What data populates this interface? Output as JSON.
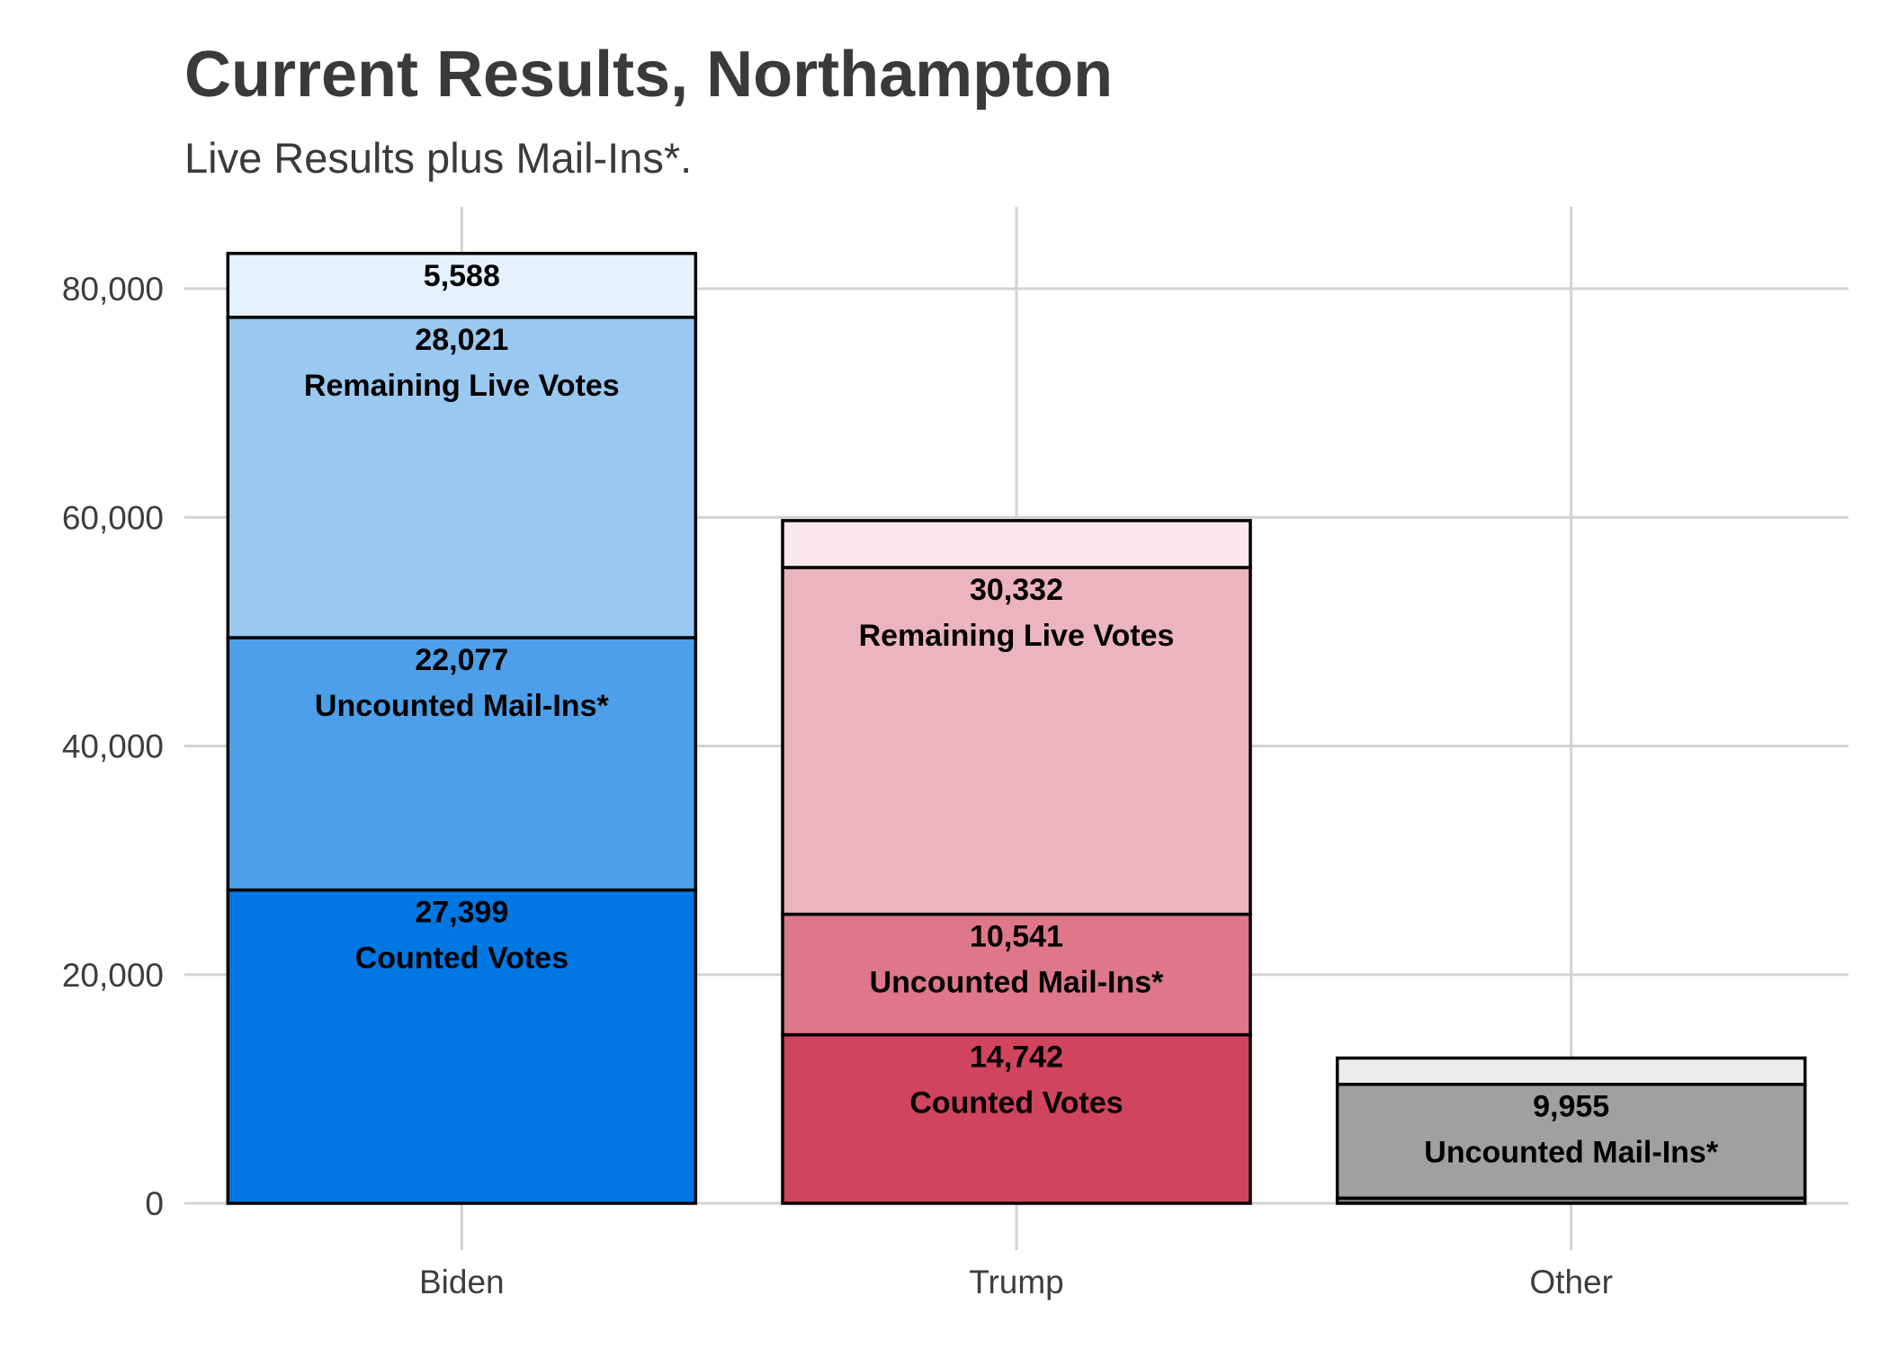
{
  "title": "Current Results, Northampton",
  "subtitle": "Live Results plus Mail-Ins*.",
  "chart_data": {
    "type": "bar",
    "stacked": true,
    "categories": [
      "Biden",
      "Trump",
      "Other"
    ],
    "y_tick_labels": [
      "0",
      "20,000",
      "40,000",
      "60,000",
      "80,000"
    ],
    "y_ticks": [
      0,
      20000,
      40000,
      60000,
      80000
    ],
    "ylim": [
      0,
      87000
    ],
    "grid": true,
    "bars": [
      {
        "category": "Biden",
        "segments": [
          {
            "value": 27399,
            "value_label": "27,399",
            "label": "Counted Votes",
            "color": "#0077e2"
          },
          {
            "value": 22077,
            "value_label": "22,077",
            "label": "Uncounted Mail-Ins*",
            "color": "#4c9fe8"
          },
          {
            "value": 28021,
            "value_label": "28,021",
            "label": "Remaining Live Votes",
            "color": "#99c8f1"
          },
          {
            "value": 5588,
            "value_label": "5,588",
            "label": "",
            "color": "#e5f1fc"
          }
        ]
      },
      {
        "category": "Trump",
        "segments": [
          {
            "value": 14742,
            "value_label": "14,742",
            "label": "Counted Votes",
            "color": "#d0445d"
          },
          {
            "value": 10541,
            "value_label": "10,541",
            "label": "Uncounted Mail-Ins*",
            "color": "#de7789"
          },
          {
            "value": 30332,
            "value_label": "30,332",
            "label": "Remaining Live Votes",
            "color": "#ecb4be"
          },
          {
            "value": 4100,
            "value_label": "",
            "label": "",
            "color": "#fae8ec"
          }
        ]
      },
      {
        "category": "Other",
        "segments": [
          {
            "value": 450,
            "value_label": "",
            "label": "",
            "color": "#7a7a7a"
          },
          {
            "value": 9955,
            "value_label": "9,955",
            "label": "Uncounted Mail-Ins*",
            "color": "#a0a0a0"
          },
          {
            "value": 2300,
            "value_label": "",
            "label": "",
            "color": "#ececec"
          }
        ]
      }
    ]
  }
}
